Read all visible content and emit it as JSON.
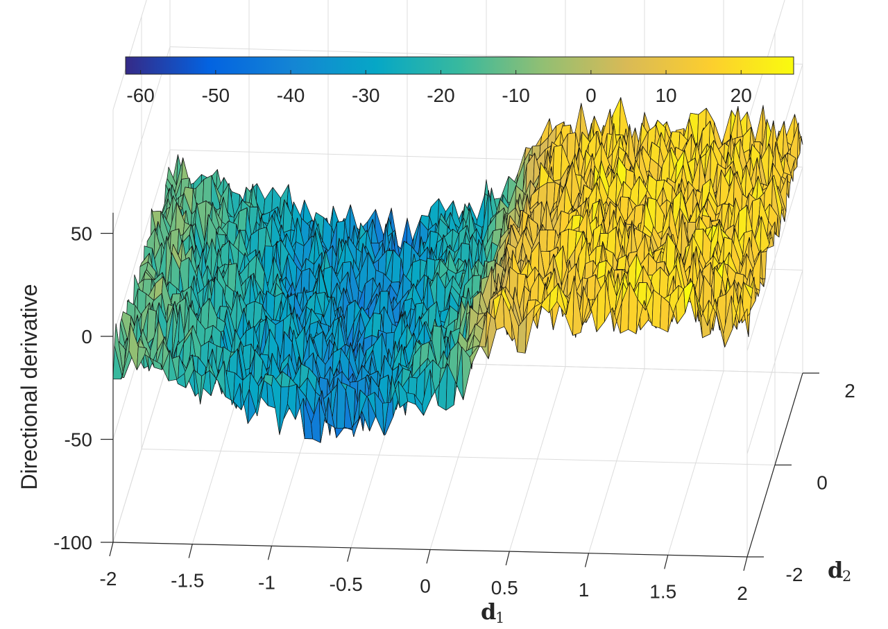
{
  "chart_data": {
    "type": "surface",
    "zlabel": "Directional derivative",
    "xlabel_main": "d",
    "xlabel_sub": "1",
    "ylabel_main": "d",
    "ylabel_sub": "2",
    "xlim": [
      -2,
      2
    ],
    "ylim": [
      -2,
      2
    ],
    "zlim": [
      -100,
      60
    ],
    "x_ticks": [
      "-2",
      "-1.5",
      "-1",
      "-0.5",
      "0",
      "0.5",
      "1",
      "1.5",
      "2"
    ],
    "y_ticks": [
      "-2",
      "0",
      "2"
    ],
    "z_ticks": [
      "-100",
      "-50",
      "0",
      "50"
    ],
    "colorbar": {
      "location": "top",
      "range": [
        -62,
        27
      ],
      "ticks": [
        "-60",
        "-50",
        "-40",
        "-30",
        "-20",
        "-10",
        "0",
        "10",
        "20"
      ],
      "colormap": [
        "#352a87",
        "#0363e1",
        "#1485d4",
        "#06a7c6",
        "#38b99e",
        "#92bf73",
        "#d9ba56",
        "#fcce2e",
        "#f9fb0e"
      ]
    },
    "grid": true,
    "surface_profile_along_d1": {
      "d1": [
        -2,
        -1.5,
        -1,
        -0.5,
        0,
        0.5,
        1,
        1.5,
        2
      ],
      "value": [
        -12,
        -22,
        -32,
        -38,
        -24,
        12,
        16,
        16,
        16
      ]
    }
  }
}
